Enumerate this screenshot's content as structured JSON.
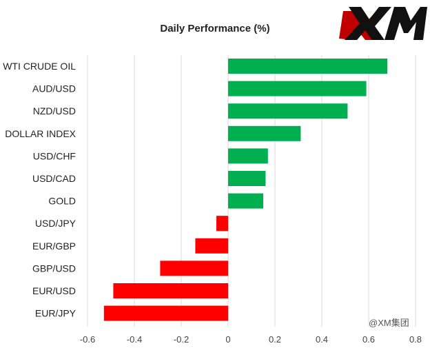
{
  "chart_data": {
    "type": "bar",
    "orientation": "horizontal",
    "title": "Daily Performance (%)",
    "categories": [
      "WTI CRUDE OIL",
      "AUD/USD",
      "NZD/USD",
      "DOLLAR INDEX",
      "USD/CHF",
      "USD/CAD",
      "GOLD",
      "USD/JPY",
      "EUR/GBP",
      "GBP/USD",
      "EUR/USD",
      "EUR/JPY"
    ],
    "values": [
      0.68,
      0.59,
      0.51,
      0.31,
      0.17,
      0.16,
      0.15,
      -0.05,
      -0.14,
      -0.29,
      -0.49,
      -0.53
    ],
    "xlim": [
      -0.6,
      0.8
    ],
    "xticks": [
      "-0.6",
      "-0.4",
      "-0.2",
      "0",
      "0.2",
      "0.4",
      "0.6",
      "0.8"
    ],
    "grid": "vertical",
    "legend": "none",
    "colors": {
      "positive": "#00b050",
      "negative": "#ff0000",
      "grid": "#d9d9d9"
    }
  },
  "logo_text": "XM",
  "watermark": "@XM集团"
}
